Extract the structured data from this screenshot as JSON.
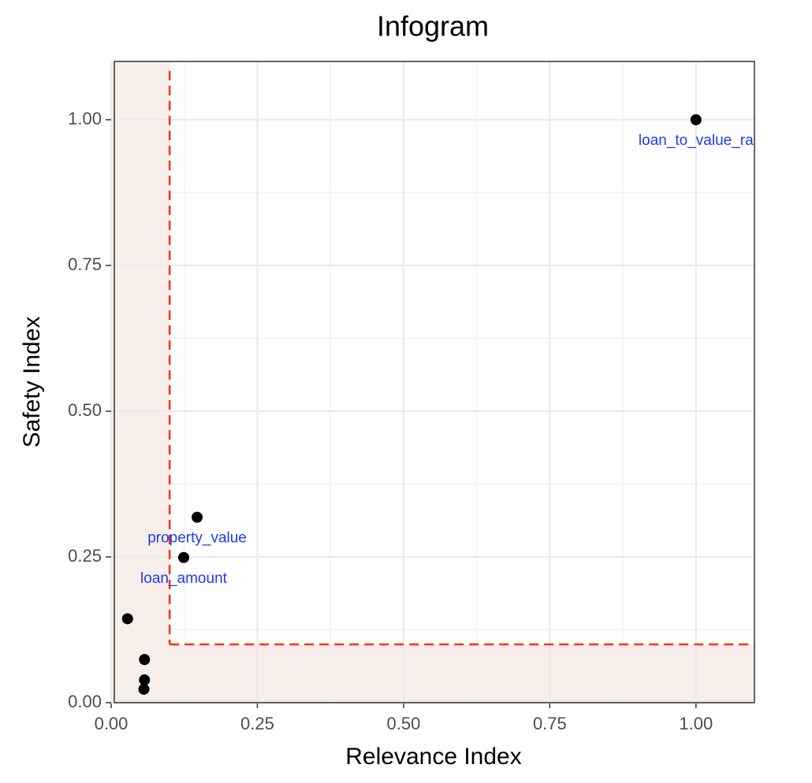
{
  "chart_data": {
    "type": "scatter",
    "title": "Infogram",
    "x_label": "Relevance Index",
    "y_label": "Safety Index",
    "x": [
      1.0,
      0.147,
      0.124,
      0.028,
      0.057,
      0.057,
      0.056
    ],
    "values": [
      1.0,
      0.318,
      0.249,
      0.144,
      0.074,
      0.039,
      0.023
    ],
    "point_labels": [
      "loan_to_value_ra",
      "property_value",
      "loan_amount",
      null,
      null,
      null,
      null
    ],
    "color": "#000000",
    "label_color": "#1a3cf5",
    "threshold_x": 0.1,
    "threshold_y": 0.1,
    "threshold_color": "#ff3311",
    "shade_color": "#f8eeea",
    "xlim": [
      0,
      1.1
    ],
    "ylim": [
      0,
      1.1
    ],
    "xticks": [
      {
        "value": 0,
        "label": "0.00"
      },
      0.25,
      {
        "value": 0.5,
        "label": "0.50"
      },
      0.75,
      {
        "value": 1,
        "label": "1.00"
      }
    ],
    "yticks": [
      {
        "value": 0,
        "label": "0.00"
      },
      0.25,
      {
        "value": 0.5,
        "label": "0.50"
      },
      0.75,
      {
        "value": 1,
        "label": "1.00"
      }
    ],
    "minor_xticks": [
      0.125,
      0.375,
      0.625,
      0.875
    ],
    "minor_yticks": [
      0.125,
      0.375,
      0.625,
      0.875
    ],
    "grid": true
  }
}
